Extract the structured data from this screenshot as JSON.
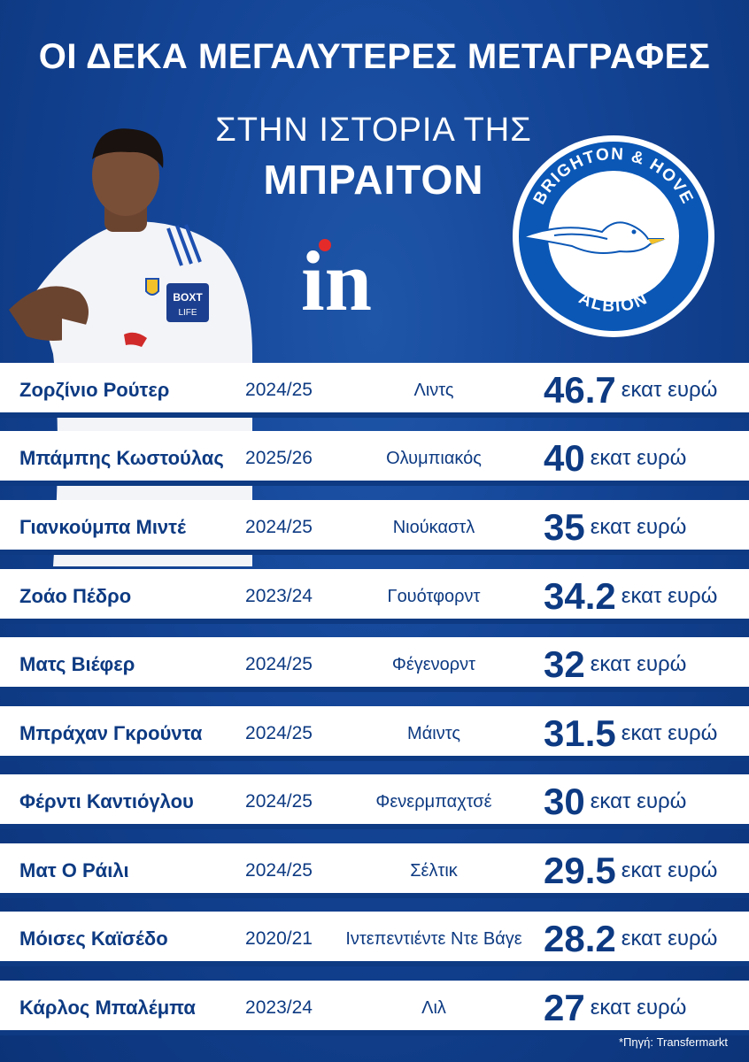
{
  "header": {
    "title_line1": "ΟΙ ΔΕΚΑ ΜΕΓΑΛΥΤΕΡΕΣ ΜΕΤΑΓΡΑΦΕΣ",
    "title_line2": "ΣΤΗΝ ΙΣΤΟΡΙΑ ΤΗΣ",
    "title_line3": "ΜΠΡΑΙΤΟΝ"
  },
  "logo": {
    "text": "in"
  },
  "crest": {
    "top_text": "BRIGHTON & HOVE",
    "bottom_text": "ALBION"
  },
  "player": {
    "sponsor_text_1": "BOXT",
    "sponsor_text_2": "LIFE"
  },
  "transfers": [
    {
      "name": "Ζορζίνιο Ρούτερ",
      "season": "2024/25",
      "club": "Λιντς",
      "fee": "46.7",
      "unit": "εκατ ευρώ"
    },
    {
      "name": "Μπάμπης Κωστούλας",
      "season": "2025/26",
      "club": "Ολυμπιακός",
      "fee": "40",
      "unit": "εκατ ευρώ"
    },
    {
      "name": "Γιανκούμπα Μιντέ",
      "season": "2024/25",
      "club": "Νιούκαστλ",
      "fee": "35",
      "unit": "εκατ ευρώ"
    },
    {
      "name": "Ζοάο Πέδρο",
      "season": "2023/24",
      "club": "Γουότφορντ",
      "fee": "34.2",
      "unit": "εκατ ευρώ"
    },
    {
      "name": "Ματς Βιέφερ",
      "season": "2024/25",
      "club": "Φέγενορντ",
      "fee": "32",
      "unit": "εκατ ευρώ"
    },
    {
      "name": "Μπράχαν Γκρούντα",
      "season": "2024/25",
      "club": "Μάιντς",
      "fee": "31.5",
      "unit": "εκατ ευρώ"
    },
    {
      "name": "Φέρντι Καντιόγλου",
      "season": "2024/25",
      "club": "Φενερμπαχτσέ",
      "fee": "30",
      "unit": "εκατ ευρώ"
    },
    {
      "name": "Ματ Ο Ράιλι",
      "season": "2024/25",
      "club": "Σέλτικ",
      "fee": "29.5",
      "unit": "εκατ ευρώ"
    },
    {
      "name": "Μόισες Καϊσέδο",
      "season": "2020/21",
      "club": "Ιντεπεντιέντε Ντε Βάγε",
      "fee": "28.2",
      "unit": "εκατ ευρώ"
    },
    {
      "name": "Κάρλος Μπαλέμπα",
      "season": "2023/24",
      "club": "Λιλ",
      "fee": "27",
      "unit": "εκατ ευρώ"
    }
  ],
  "footer": {
    "source": "*Πηγή: Transfermarkt"
  },
  "colors": {
    "navy": "#0d3a82",
    "white": "#ffffff",
    "accent_red": "#e52a2a"
  }
}
